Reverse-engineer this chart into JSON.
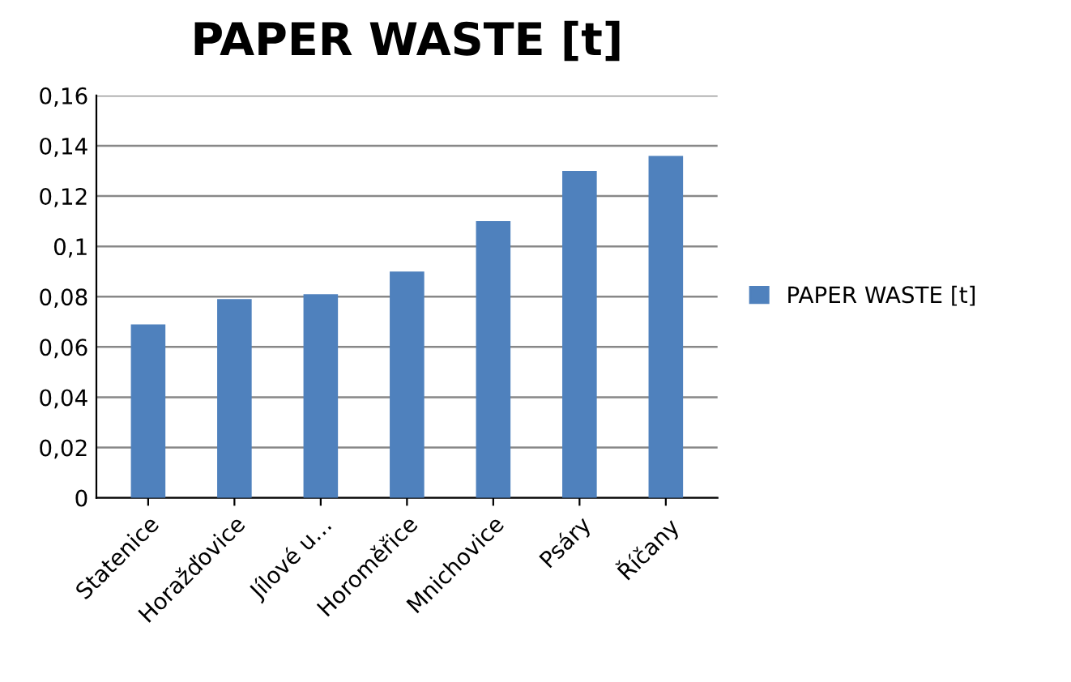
{
  "chart_data": {
    "type": "bar",
    "title": "PAPER WASTE [t]",
    "categories": [
      "Statenice",
      "Horažďovice",
      "Jílové u…",
      "Horoměřice",
      "Mnichovice",
      "Psáry",
      "Říčany"
    ],
    "series": [
      {
        "name": "PAPER WASTE [t]",
        "color": "#4f81bd",
        "values": [
          0.069,
          0.079,
          0.081,
          0.09,
          0.11,
          0.13,
          0.136
        ]
      }
    ],
    "ylim": [
      0,
      0.16
    ],
    "yticks": [
      0,
      {
        "value": 0.02,
        "label": "0,02"
      },
      {
        "value": 0.04,
        "label": "0,04"
      },
      {
        "value": 0.06,
        "label": "0,06"
      },
      {
        "value": 0.08,
        "label": "0,08"
      },
      {
        "value": 0.1,
        "label": "0,1"
      },
      {
        "value": 0.12,
        "label": "0,12"
      },
      {
        "value": 0.14,
        "label": "0,14"
      },
      {
        "value": 0.16,
        "label": "0,16"
      }
    ],
    "grid": "y",
    "legend": "right"
  }
}
